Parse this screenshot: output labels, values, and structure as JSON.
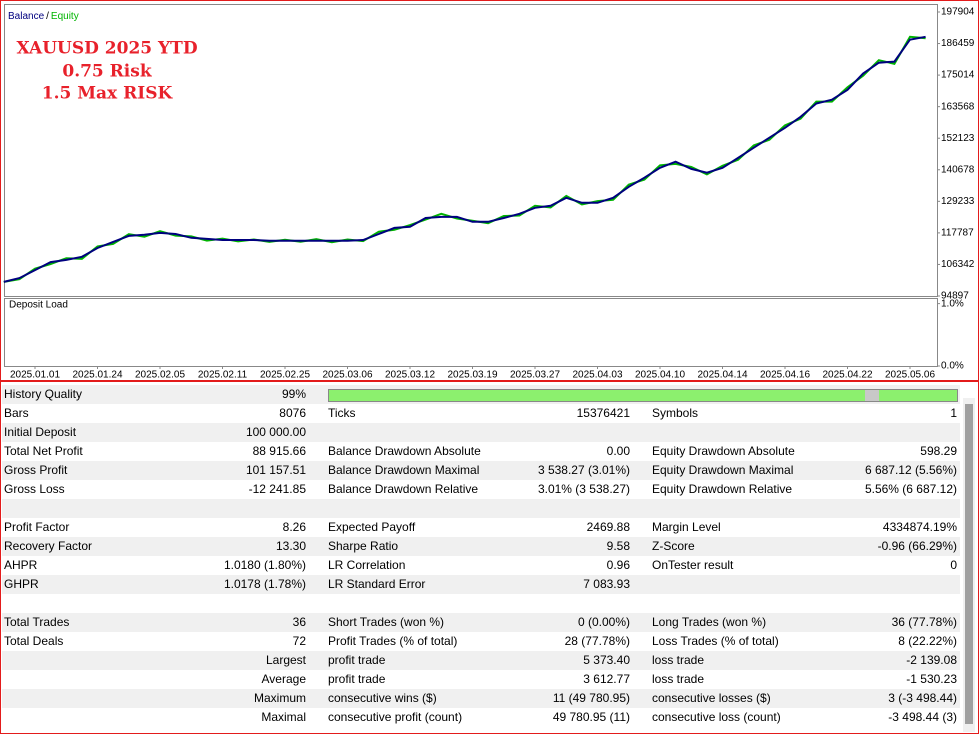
{
  "chart_data": [
    {
      "type": "line",
      "annotation": [
        "XAUUSD 2025 YTD",
        "0.75 Risk",
        "1.5 Max RISK"
      ],
      "categories": [
        null,
        null,
        "2025.01.01",
        null,
        null,
        null,
        "2025.01.24",
        null,
        null,
        null,
        "2025.02.05",
        null,
        null,
        null,
        "2025.02.11",
        null,
        null,
        null,
        "2025.02.25",
        null,
        null,
        null,
        "2025.03.06",
        null,
        null,
        null,
        "2025.03.12",
        null,
        null,
        null,
        "2025.03.19",
        null,
        null,
        null,
        "2025.03.27",
        null,
        null,
        null,
        "2025.04.03",
        null,
        null,
        null,
        "2025.04.10",
        null,
        null,
        null,
        "2025.04.14",
        null,
        null,
        null,
        "2025.04.16",
        null,
        null,
        null,
        "2025.04.22",
        null,
        null,
        null,
        "2025.05.06",
        null
      ],
      "series": [
        {
          "name": "Balance",
          "color": "#00007f",
          "values": [
            100000,
            101400,
            104300,
            107200,
            108000,
            109100,
            112300,
            114500,
            116700,
            117100,
            117800,
            117400,
            116000,
            115600,
            115200,
            115200,
            115200,
            114900,
            114900,
            114900,
            114900,
            114900,
            114900,
            115200,
            117400,
            119600,
            120000,
            123200,
            123600,
            123600,
            121800,
            121800,
            123200,
            124700,
            126900,
            127600,
            130500,
            128700,
            128700,
            130500,
            134500,
            137800,
            141400,
            143600,
            141000,
            139600,
            141400,
            145000,
            148700,
            152300,
            155900,
            159900,
            164700,
            166100,
            169700,
            175600,
            179500,
            179900,
            187900,
            188916
          ]
        },
        {
          "name": "Equity",
          "color": "#00b400",
          "values": [
            100000,
            101000,
            104800,
            106500,
            108600,
            108400,
            112900,
            113800,
            117300,
            116400,
            118400,
            116800,
            116500,
            115000,
            115700,
            114700,
            115400,
            114500,
            115300,
            114600,
            115500,
            114400,
            115400,
            114800,
            118200,
            118900,
            120600,
            122600,
            124700,
            123000,
            122200,
            121300,
            123900,
            124100,
            127600,
            127000,
            131200,
            128100,
            129300,
            129800,
            135300,
            137100,
            142300,
            142800,
            141700,
            139000,
            142100,
            144300,
            149500,
            151600,
            156800,
            159200,
            165400,
            165400,
            170600,
            174800,
            180400,
            179100,
            188900,
            188400
          ]
        }
      ],
      "ylim": [
        94897,
        200800
      ],
      "yticks": [
        197904,
        186459,
        175014,
        163568,
        152123,
        140678,
        129233,
        117787,
        106342,
        94897
      ]
    },
    {
      "type": "bar",
      "title": "Deposit Load",
      "ylim": [
        0,
        1.09
      ],
      "yticks": [
        {
          "value": 1,
          "label": "1.0%"
        },
        {
          "value": 0,
          "label": "0.0%"
        }
      ]
    }
  ],
  "report": {
    "rows": [
      [
        "History Quality",
        "99%"
      ],
      [
        "Bars",
        "8076",
        "Ticks",
        "15376421",
        "Symbols",
        "1"
      ],
      [
        "Initial Deposit",
        "100 000.00"
      ],
      [
        "Total Net Profit",
        "88 915.66",
        "Balance Drawdown Absolute",
        "0.00",
        "Equity Drawdown Absolute",
        "598.29"
      ],
      [
        "Gross Profit",
        "101 157.51",
        "Balance Drawdown Maximal",
        "3 538.27 (3.01%)",
        "Equity Drawdown Maximal",
        "6 687.12 (5.56%)"
      ],
      [
        "Gross Loss",
        "-12 241.85",
        "Balance Drawdown Relative",
        "3.01% (3 538.27)",
        "Equity Drawdown Relative",
        "5.56% (6 687.12)"
      ],
      [],
      [
        "Profit Factor",
        "8.26",
        "Expected Payoff",
        "2469.88",
        "Margin Level",
        "4334874.19%"
      ],
      [
        "Recovery Factor",
        "13.30",
        "Sharpe Ratio",
        "9.58",
        "Z-Score",
        "-0.96 (66.29%)"
      ],
      [
        "AHPR",
        "1.0180 (1.80%)",
        "LR Correlation",
        "0.96",
        "OnTester result",
        "0"
      ],
      [
        "GHPR",
        "1.0178 (1.78%)",
        "LR Standard Error",
        "7 083.93"
      ],
      [],
      [
        "Total Trades",
        "36",
        "Short Trades (won %)",
        "0 (0.00%)",
        "Long Trades (won %)",
        "36 (77.78%)"
      ],
      [
        "Total Deals",
        "72",
        "Profit Trades (% of total)",
        "28 (77.78%)",
        "Loss Trades (% of total)",
        "8 (22.22%)"
      ],
      [
        null,
        "Largest",
        "profit trade",
        "5 373.40",
        "loss trade",
        "-2 139.08"
      ],
      [
        null,
        "Average",
        "profit trade",
        "3 612.77",
        "loss trade",
        "-1 530.23"
      ],
      [
        null,
        "Maximum",
        "consecutive wins ($)",
        "11 (49 780.95)",
        "consecutive losses ($)",
        "3 (-3 498.44)"
      ],
      [
        null,
        "Maximal",
        "consecutive profit (count)",
        "49 780.95 (11)",
        "consecutive loss (count)",
        "-3 498.44 (3)"
      ]
    ]
  }
}
